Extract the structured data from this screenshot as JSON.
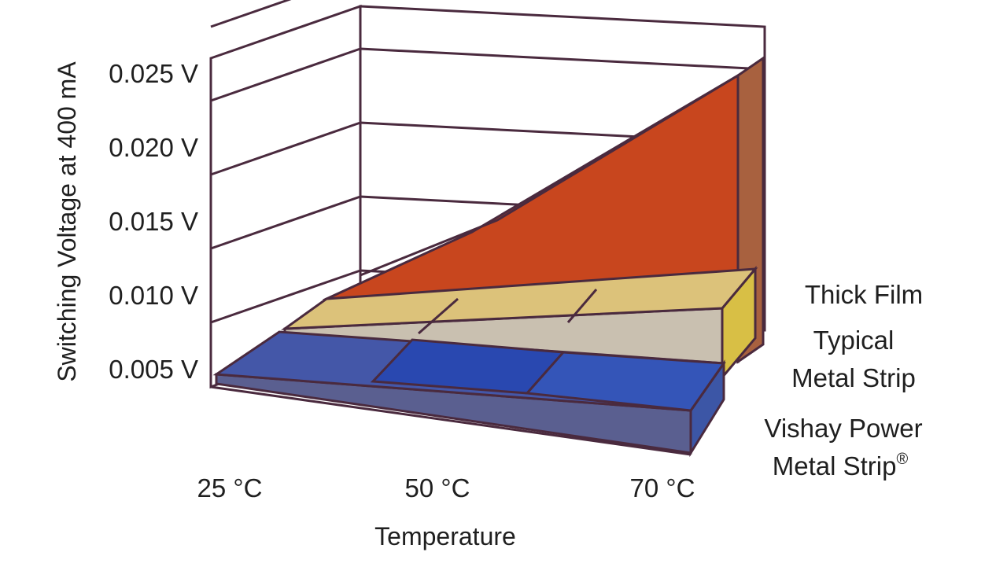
{
  "chart_data": {
    "type": "area",
    "style": "3d",
    "xlabel": "Temperature",
    "ylabel": "Switching Voltage at 400 mA",
    "categories": [
      "25 °C",
      "50 °C",
      "70 °C"
    ],
    "y_ticks": [
      "0.005 V",
      "0.010 V",
      "0.015 V",
      "0.020 V",
      "0.025 V"
    ],
    "ylim": [
      0,
      0.027
    ],
    "grid": true,
    "legend_placement": "right",
    "series": [
      {
        "name": "Thick Film",
        "values": [
          0.0025,
          0.0085,
          0.0265
        ],
        "color": "#c8461e"
      },
      {
        "name_lines": [
          "Typical",
          "Metal Strip"
        ],
        "values": [
          0.003,
          0.004,
          0.006
        ],
        "color": "#d6b55c"
      },
      {
        "name_lines": [
          "Vishay Power",
          "Metal Strip"
        ],
        "name_suffix": "®",
        "values": [
          0.001,
          0.001,
          0.001
        ],
        "color": "#2f4fa8"
      }
    ]
  }
}
